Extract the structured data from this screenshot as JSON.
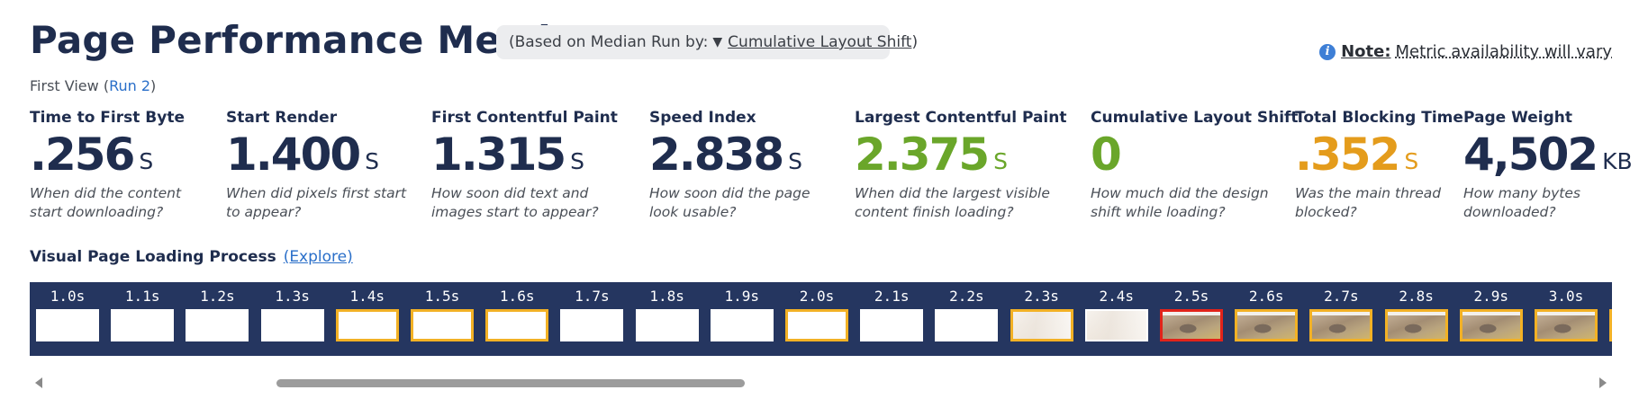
{
  "header": {
    "title": "Page Performance Metrics",
    "median_prefix": "(Based on Median Run by:",
    "median_arrow": "▼",
    "median_link": "Cumulative Layout Shift",
    "median_suffix": ")"
  },
  "note": {
    "icon": "info-icon",
    "label": "Note:",
    "text": "Metric availability will vary"
  },
  "first_view": {
    "prefix": "First View (",
    "run_link": "Run 2",
    "suffix": ")"
  },
  "metrics": [
    {
      "label": "Time to First Byte",
      "value": ".256",
      "unit": "S",
      "desc_line1": "When did the content",
      "desc_line2": "start downloading?",
      "color": "#1f2d4e"
    },
    {
      "label": "Start Render",
      "value": "1.400",
      "unit": "S",
      "desc_line1": "When did pixels first start",
      "desc_line2": "to appear?",
      "color": "#1f2d4e"
    },
    {
      "label": "First Contentful Paint",
      "value": "1.315",
      "unit": "S",
      "desc_line1": "How soon did text and",
      "desc_line2": "images start to appear?",
      "color": "#1f2d4e"
    },
    {
      "label": "Speed Index",
      "value": "2.838",
      "unit": "S",
      "desc_line1": "How soon did the page",
      "desc_line2": "look usable?",
      "color": "#1f2d4e"
    },
    {
      "label": "Largest Contentful Paint",
      "value": "2.375",
      "unit": "S",
      "desc_line1": "When did the largest visible",
      "desc_line2": "content finish loading?",
      "color": "#6aa62a"
    },
    {
      "label": "Cumulative Layout Shift",
      "value": "0",
      "unit": "",
      "desc_line1": "How much did the design",
      "desc_line2": "shift while loading?",
      "color": "#6aa62a"
    },
    {
      "label": "Total Blocking Time",
      "value": ".352",
      "unit": "S",
      "desc_line1": "Was the main thread",
      "desc_line2": "blocked?",
      "color": "#e49c1c"
    },
    {
      "label": "Page Weight",
      "value": "4,502",
      "unit": "KB",
      "desc_line1": "How many bytes",
      "desc_line2": "downloaded?",
      "color": "#1f2d4e"
    }
  ],
  "visual": {
    "title": "Visual Page Loading Process",
    "explore_link": "(Explore)"
  },
  "frames": [
    {
      "time": "1.0s",
      "state": "blank"
    },
    {
      "time": "1.1s",
      "state": "blank"
    },
    {
      "time": "1.2s",
      "state": "blank"
    },
    {
      "time": "1.3s",
      "state": "blank"
    },
    {
      "time": "1.4s",
      "state": "changed-blank"
    },
    {
      "time": "1.5s",
      "state": "changed-blank"
    },
    {
      "time": "1.6s",
      "state": "changed-blank"
    },
    {
      "time": "1.7s",
      "state": "blank"
    },
    {
      "time": "1.8s",
      "state": "blank"
    },
    {
      "time": "1.9s",
      "state": "blank"
    },
    {
      "time": "2.0s",
      "state": "changed-blank"
    },
    {
      "time": "2.1s",
      "state": "blank"
    },
    {
      "time": "2.2s",
      "state": "blank"
    },
    {
      "time": "2.3s",
      "state": "changed-faint"
    },
    {
      "time": "2.4s",
      "state": "faint"
    },
    {
      "time": "2.5s",
      "state": "lcp-hero"
    },
    {
      "time": "2.6s",
      "state": "changed-hero"
    },
    {
      "time": "2.7s",
      "state": "changed-hero"
    },
    {
      "time": "2.8s",
      "state": "changed-hero"
    },
    {
      "time": "2.9s",
      "state": "changed-hero"
    },
    {
      "time": "3.0s",
      "state": "changed-hero"
    },
    {
      "time": "",
      "state": "changed-hero"
    }
  ],
  "colors": {
    "navy": "#1f2d4e",
    "green": "#6aa62a",
    "orange": "#e49c1c",
    "link": "#2a6fc9",
    "filmstrip_bg": "#253660",
    "frame_changed": "#f2b125",
    "frame_lcp": "#e2231a"
  }
}
